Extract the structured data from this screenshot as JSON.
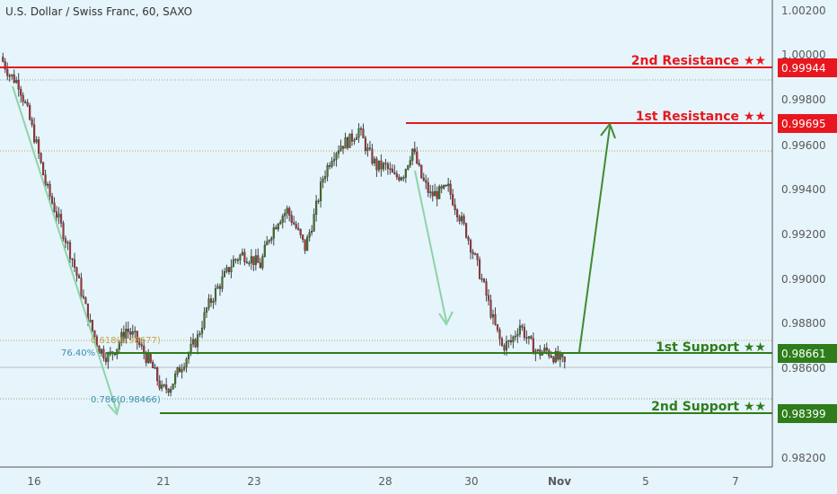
{
  "chart_data": {
    "type": "candlestick",
    "title": "U.S. Dollar / Swiss Franc, 60, SAXO",
    "ylim": [
      0.9813,
      1.0026
    ],
    "y_ticks": [
      "1.00200",
      "1.00000",
      "0.99800",
      "0.99600",
      "0.99400",
      "0.99200",
      "0.99000",
      "0.98800",
      "0.98600",
      "0.98200"
    ],
    "x_tick_labels": [
      "16",
      "21",
      "23",
      "28",
      "30",
      "Nov",
      "5",
      "7"
    ],
    "last_price_label": "0.98600",
    "levels": [
      {
        "name": "2nd Resistance ★★",
        "value": 0.99944,
        "tag": "0.99944",
        "color": "#e8171f"
      },
      {
        "name": "1st Resistance ★★",
        "value": 0.99695,
        "tag": "0.99695",
        "color": "#e8171f"
      },
      {
        "name": "1st Support ★★",
        "value": 0.98661,
        "tag": "0.98661",
        "color": "#2e7d1a"
      },
      {
        "name": "2nd Support ★★",
        "value": 0.98399,
        "tag": "0.98399",
        "color": "#2e7d1a"
      }
    ],
    "fib_labels": [
      {
        "text": "76.40%",
        "color": "#3a8fb0"
      },
      {
        "text": "0.618(0.98677)",
        "color": "#c8a24a"
      },
      {
        "text": "0.786(0.98466)",
        "color": "#3a8fb0"
      }
    ],
    "price_path": [
      1.0,
      0.9992,
      0.9988,
      0.9975,
      0.996,
      0.9942,
      0.9931,
      0.992,
      0.9908,
      0.9893,
      0.9878,
      0.9867,
      0.9863,
      0.9868,
      0.9876,
      0.9872,
      0.9865,
      0.9858,
      0.9848,
      0.985,
      0.9858,
      0.9865,
      0.9872,
      0.9885,
      0.9893,
      0.99,
      0.9907,
      0.991,
      0.9908,
      0.9905,
      0.9918,
      0.9926,
      0.993,
      0.9922,
      0.9913,
      0.9927,
      0.9945,
      0.9955,
      0.996,
      0.9962,
      0.9967,
      0.9957,
      0.995,
      0.995,
      0.9945,
      0.9947,
      0.9958,
      0.9945,
      0.9937,
      0.9938,
      0.994,
      0.993,
      0.992,
      0.9908,
      0.9895,
      0.988,
      0.9868,
      0.987,
      0.9878,
      0.987,
      0.9865,
      0.9866,
      0.9863,
      0.986
    ]
  },
  "colors": {
    "background": "#e6f4fb",
    "bull": "#3e7d20",
    "bear": "#b6303a",
    "resistance": "#e8171f",
    "support": "#2e7d1a",
    "arrow_down": "#8ed3a8",
    "arrow_up": "#3f8b30"
  }
}
